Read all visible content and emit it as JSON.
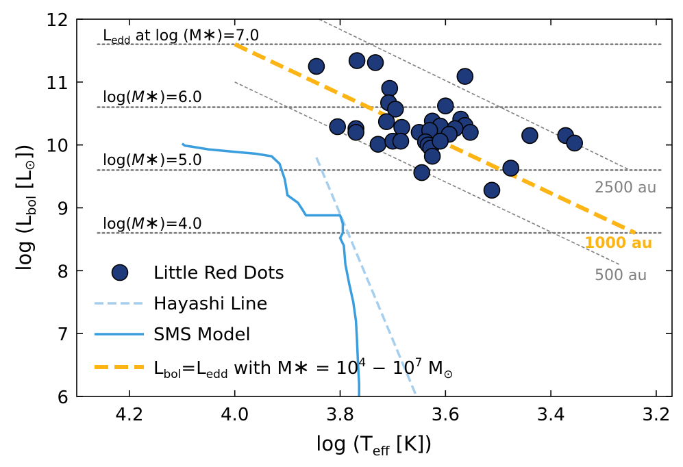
{
  "chart_data": {
    "type": "scatter",
    "xlabel": "log (T_eff [K])",
    "ylabel": "log (L_bol [L_sun])",
    "xlim": [
      4.3,
      3.17
    ],
    "ylim": [
      6,
      12
    ],
    "x_inverted": true,
    "x_ticks": [
      "4.2",
      "4.0",
      "3.8",
      "3.6",
      "3.4",
      "3.2"
    ],
    "x_tick_values": [
      4.2,
      4.0,
      3.8,
      3.6,
      3.4,
      3.2
    ],
    "y_ticks": [
      "6",
      "7",
      "8",
      "9",
      "10",
      "11",
      "12"
    ],
    "y_tick_values": [
      6,
      7,
      8,
      9,
      10,
      11,
      12
    ],
    "series": [
      {
        "name": "Little Red Dots",
        "kind": "scatter",
        "color": "#1f3a7a",
        "points": [
          [
            3.845,
            11.25
          ],
          [
            3.768,
            11.34
          ],
          [
            3.733,
            11.31
          ],
          [
            3.563,
            11.09
          ],
          [
            3.706,
            10.9
          ],
          [
            3.708,
            10.67
          ],
          [
            3.695,
            10.57
          ],
          [
            3.6,
            10.62
          ],
          [
            3.712,
            10.37
          ],
          [
            3.625,
            10.38
          ],
          [
            3.571,
            10.41
          ],
          [
            3.563,
            10.31
          ],
          [
            3.61,
            10.3
          ],
          [
            3.683,
            10.28
          ],
          [
            3.805,
            10.29
          ],
          [
            3.77,
            10.26
          ],
          [
            3.77,
            10.2
          ],
          [
            3.65,
            10.2
          ],
          [
            3.63,
            10.23
          ],
          [
            3.582,
            10.26
          ],
          [
            3.593,
            10.17
          ],
          [
            3.553,
            10.2
          ],
          [
            3.44,
            10.15
          ],
          [
            3.372,
            10.15
          ],
          [
            3.355,
            10.03
          ],
          [
            3.728,
            10.01
          ],
          [
            3.7,
            10.06
          ],
          [
            3.685,
            10.06
          ],
          [
            3.638,
            10.05
          ],
          [
            3.633,
            10.0
          ],
          [
            3.628,
            9.95
          ],
          [
            3.625,
            9.82
          ],
          [
            3.61,
            10.06
          ],
          [
            3.645,
            9.56
          ],
          [
            3.476,
            9.63
          ],
          [
            3.512,
            9.28
          ]
        ]
      },
      {
        "name": "Hayashi Line",
        "kind": "dashed-line",
        "color": "#a6cfee",
        "points": [
          [
            3.845,
            9.8
          ],
          [
            3.655,
            6.0
          ]
        ]
      },
      {
        "name": "SMS Model",
        "kind": "line",
        "color": "#3a9ede",
        "points": [
          [
            4.1,
            10.02
          ],
          [
            4.095,
            9.99
          ],
          [
            4.08,
            9.97
          ],
          [
            4.05,
            9.93
          ],
          [
            4.0,
            9.89
          ],
          [
            3.96,
            9.86
          ],
          [
            3.93,
            9.82
          ],
          [
            3.915,
            9.7
          ],
          [
            3.905,
            9.45
          ],
          [
            3.9,
            9.2
          ],
          [
            3.88,
            9.08
          ],
          [
            3.87,
            8.95
          ],
          [
            3.865,
            8.88
          ],
          [
            3.84,
            8.88
          ],
          [
            3.8,
            8.88
          ],
          [
            3.795,
            8.75
          ],
          [
            3.795,
            8.6
          ],
          [
            3.8,
            8.52
          ],
          [
            3.793,
            8.4
          ],
          [
            3.79,
            8.1
          ],
          [
            3.783,
            7.8
          ],
          [
            3.775,
            7.5
          ],
          [
            3.77,
            7.2
          ],
          [
            3.768,
            6.9
          ],
          [
            3.766,
            6.5
          ],
          [
            3.764,
            6.2
          ],
          [
            3.764,
            6.0
          ]
        ]
      },
      {
        "name": "L_bol=L_edd with M_* = 10^4 - 10^7 M_sun",
        "kind": "dashed-line",
        "color": "#fdb515",
        "points": [
          [
            4.0,
            11.6
          ],
          [
            3.24,
            8.6
          ]
        ]
      }
    ],
    "eddington_levels": [
      {
        "label_prefix": "L",
        "label_sub": "edd",
        "label_rest": " at log (M",
        "label_star": "∗",
        "label_end": ")=7.0",
        "y": 11.6
      },
      {
        "label_prefix": "log(",
        "label_m": "M",
        "label_star": "∗",
        "label_end": ")=6.0",
        "y": 10.6
      },
      {
        "label_prefix": "log(",
        "label_m": "M",
        "label_star": "∗",
        "label_end": ")=5.0",
        "y": 9.6
      },
      {
        "label_prefix": "log(",
        "label_m": "M",
        "label_star": "∗",
        "label_end": ")=4.0",
        "y": 8.6
      }
    ],
    "radius_lines": [
      {
        "label": "2500 au",
        "points": [
          [
            3.84,
            12.0
          ],
          [
            3.25,
            9.6
          ]
        ]
      },
      {
        "label": "500 au",
        "points": [
          [
            4.0,
            11.0
          ],
          [
            3.27,
            8.1
          ]
        ]
      }
    ],
    "annotations": {
      "gold_label": "1000 au",
      "label_2500": "2500 au",
      "label_500": "500 au"
    },
    "legend": {
      "placement": "lower-left",
      "entries": [
        {
          "label": "Little Red Dots"
        },
        {
          "label": "Hayashi Line"
        },
        {
          "label": "SMS Model"
        },
        {
          "label_main": "L",
          "sub1": "bol",
          "mid": "=L",
          "sub2": "edd",
          "rest": " with M",
          "star": "∗",
          "eq": " = 10",
          "sup1": "4",
          "dash": " − 10",
          "sup2": "7",
          "unit": " M",
          "sun": "⊙"
        }
      ]
    },
    "axis_labels": {
      "x_main": "log (T",
      "x_sub": "eff",
      "x_end": " [K])",
      "y_main": "log (L",
      "y_sub": "bol",
      "y_mid": " [L",
      "y_sun": "⊙",
      "y_end": "])"
    },
    "colors": {
      "dots": "#1f3a7a",
      "hayashi": "#a6cfee",
      "sms": "#3a9ede",
      "eddington": "#fdb515",
      "reference": "#7f7f7f"
    }
  }
}
